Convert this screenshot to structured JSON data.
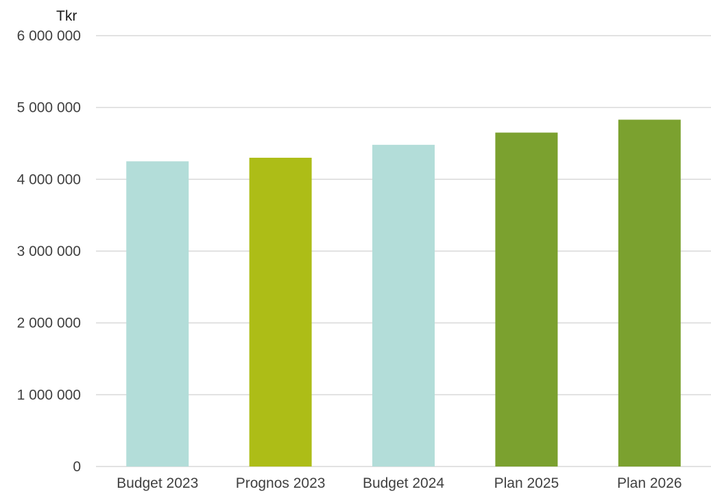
{
  "chart_data": {
    "type": "bar",
    "title": "",
    "xlabel": "",
    "ylabel": "Tkr",
    "categories": [
      "Budget 2023",
      "Prognos 2023",
      "Budget 2024",
      "Plan 2025",
      "Plan 2026"
    ],
    "values": [
      4250000,
      4300000,
      4480000,
      4650000,
      4830000
    ],
    "bar_colors": [
      "#b3ddd9",
      "#adbd17",
      "#b3ddd9",
      "#7ba12f",
      "#7ba12f"
    ],
    "ylim": [
      0,
      6000000
    ],
    "y_ticks": [
      0,
      1000000,
      2000000,
      3000000,
      4000000,
      5000000,
      6000000
    ],
    "y_tick_labels": [
      "0",
      "1 000 000",
      "2 000 000",
      "3 000 000",
      "4 000 000",
      "5 000 000",
      "6 000 000"
    ],
    "grid": true,
    "legend": "none"
  }
}
